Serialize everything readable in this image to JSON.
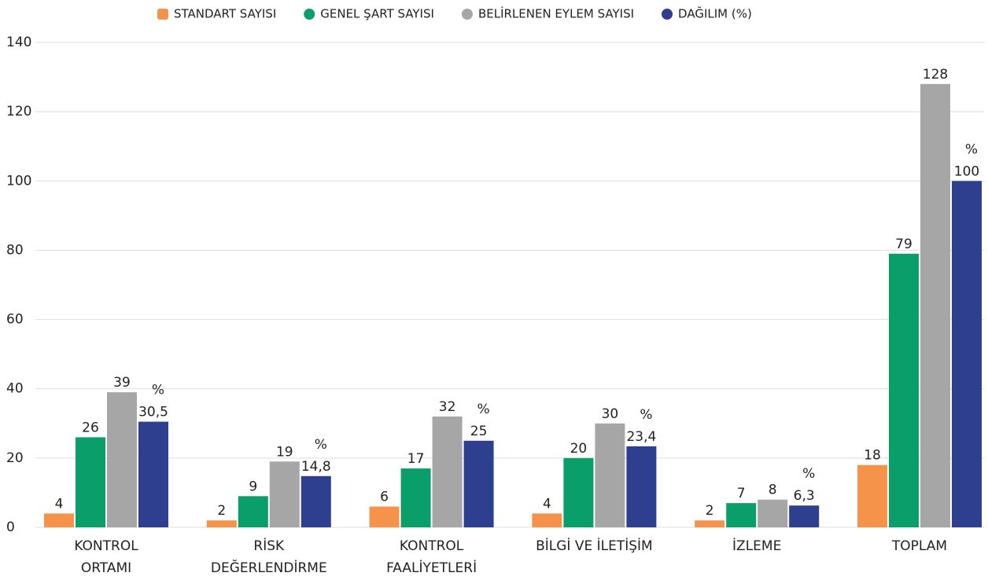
{
  "chart_data": {
    "type": "bar",
    "categories": [
      [
        "KONTROL",
        "ORTAMI"
      ],
      [
        "RİSK",
        "DEĞERLENDİRME"
      ],
      [
        "KONTROL",
        "FAALİYETLERİ"
      ],
      [
        "BİLGİ VE İLETİŞİM"
      ],
      [
        "İZLEME"
      ],
      [
        "TOPLAM"
      ]
    ],
    "series": [
      {
        "name": "STANDART SAYISI",
        "color": "#f5934a",
        "values": [
          4,
          2,
          6,
          4,
          2,
          18
        ]
      },
      {
        "name": "GENEL ŞART SAYISI",
        "color": "#0a9e6a",
        "values": [
          26,
          9,
          17,
          20,
          7,
          79
        ]
      },
      {
        "name": "BELİRLENEN EYLEM SAYISI",
        "color": "#a6a6a6",
        "values": [
          39,
          19,
          32,
          30,
          8,
          128
        ]
      },
      {
        "name": "DAĞILIM (%)",
        "color": "#2e3f8f",
        "values": [
          30.5,
          14.8,
          25,
          23.4,
          6.3,
          100
        ],
        "value_labels": [
          "30,5",
          "14,8",
          "25",
          "23,4",
          "6,3",
          "100"
        ],
        "label_unit": "%"
      }
    ],
    "ylim": [
      0,
      140
    ],
    "yticks": [
      0,
      20,
      40,
      60,
      80,
      100,
      120,
      140
    ],
    "grid": true,
    "legend": "top"
  }
}
